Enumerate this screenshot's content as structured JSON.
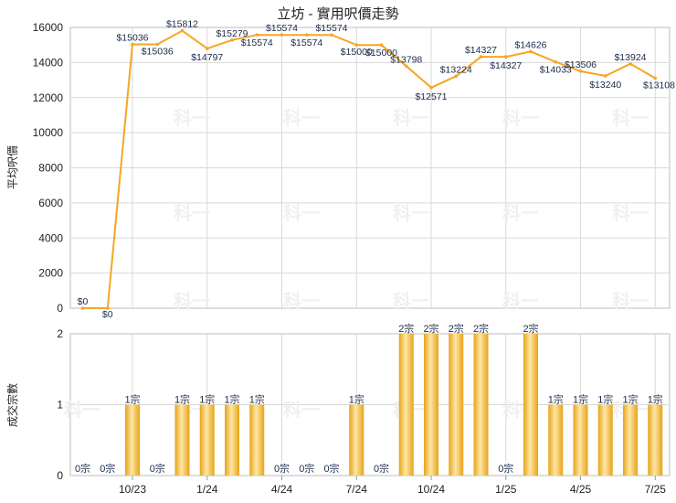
{
  "chart_data": [
    {
      "type": "line",
      "title": "立坊 - 實用呎價走勢",
      "ylabel": "平均呎價",
      "ylim": [
        0,
        16000
      ],
      "yticks": [
        "0",
        "2000",
        "4000",
        "6000",
        "8000",
        "10000",
        "12000",
        "14000",
        "16000"
      ],
      "grid": true,
      "color": "#f5a623",
      "series": [
        {
          "values": [
            0,
            0,
            15036,
            15036,
            15812,
            14797,
            15279,
            15574,
            15574,
            15574,
            15574,
            15000,
            15000,
            13798,
            12571,
            13224,
            14327,
            14327,
            14626,
            14033,
            13506,
            13240,
            13924,
            13108
          ],
          "labels": [
            "$0",
            "$0",
            "$15036",
            "$15036",
            "$15812",
            "$14797",
            "$15279",
            "$15574",
            "$15574",
            "$15574",
            "$15574",
            "$15000",
            "$15000",
            "$13798",
            "$12571",
            "$13224",
            "$14327",
            "$14327",
            "$14626",
            "$14033",
            "$13506",
            "$13240",
            "$13924",
            "$13108"
          ]
        }
      ]
    },
    {
      "type": "bar",
      "ylabel": "成交宗數",
      "ylim": [
        0,
        2
      ],
      "yticks": [
        "0",
        "1",
        "2"
      ],
      "grid": true,
      "xtick_labels": [
        "10/23",
        "1/24",
        "4/24",
        "7/24",
        "10/24",
        "1/25",
        "4/25",
        "7/25"
      ],
      "xtick_positions": [
        2,
        5,
        8,
        11,
        14,
        17,
        20,
        23
      ],
      "values": [
        0,
        0,
        1,
        0,
        1,
        1,
        1,
        1,
        0,
        0,
        0,
        1,
        0,
        2,
        2,
        2,
        2,
        0,
        2,
        1,
        1,
        1,
        1,
        1
      ],
      "labels": [
        "0宗",
        "0宗",
        "1宗",
        "0宗",
        "1宗",
        "1宗",
        "1宗",
        "1宗",
        "0宗",
        "0宗",
        "0宗",
        "1宗",
        "0宗",
        "2宗",
        "2宗",
        "2宗",
        "2宗",
        "0宗",
        "2宗",
        "1宗",
        "1宗",
        "1宗",
        "1宗",
        "1宗"
      ]
    }
  ]
}
